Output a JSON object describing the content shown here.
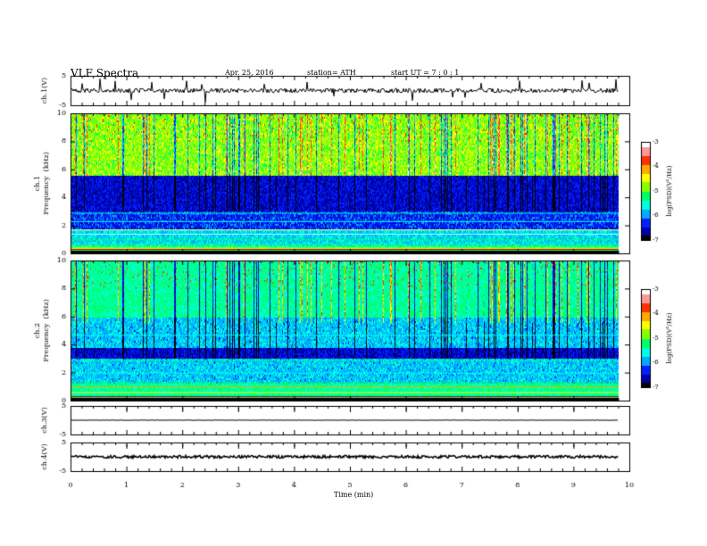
{
  "header": {
    "title": "VLF  Spectra",
    "date": "Apr. 25, 2016",
    "station": "station= ATH",
    "start": "start  UT  =    7  : 0  : 1"
  },
  "chart_data": [
    {
      "type": "line",
      "panel": "ch1-waveform",
      "ylabel": "ch.1(V)",
      "ylim": [
        -5,
        5
      ],
      "yticks": [
        "5",
        "-5"
      ],
      "color": "#000000"
    },
    {
      "type": "heatmap",
      "panel": "ch1-spectrogram",
      "ylabel": "ch.1\nFrequency  (kHz)",
      "ylim": [
        0,
        10
      ],
      "yticks": [
        "0",
        "2",
        "4",
        "6",
        "8",
        "10"
      ],
      "colorbar": {
        "label": "log(PSD)(V²/Hz)",
        "range": [
          -7,
          -3
        ],
        "ticks": [
          "-3",
          "-4",
          "-5",
          "-6",
          "-7"
        ]
      },
      "bands_khz": [
        {
          "from": 0.0,
          "to": 0.3,
          "level": "dark"
        },
        {
          "from": 0.3,
          "to": 1.8,
          "level": "cyan-green mix"
        },
        {
          "from": 1.8,
          "to": 3.0,
          "level": "blue with cyan lines"
        },
        {
          "from": 3.0,
          "to": 5.6,
          "level": "dark blue"
        },
        {
          "from": 5.6,
          "to": 10.0,
          "level": "green-yellow"
        }
      ]
    },
    {
      "type": "heatmap",
      "panel": "ch2-spectrogram",
      "ylabel": "ch.2\nFrequency  (kHz)",
      "ylim": [
        0,
        10
      ],
      "yticks": [
        "0",
        "2",
        "4",
        "6",
        "8",
        "10"
      ],
      "colorbar": {
        "label": "log(PSD)(V²/Hz)",
        "range": [
          -7,
          -3
        ],
        "ticks": [
          "-3",
          "-4",
          "-5",
          "-6",
          "-7"
        ]
      },
      "bands_khz": [
        {
          "from": 0.0,
          "to": 0.4,
          "level": "dark"
        },
        {
          "from": 0.4,
          "to": 3.0,
          "level": "cyan-green mix"
        },
        {
          "from": 3.0,
          "to": 3.8,
          "level": "dark blue"
        },
        {
          "from": 3.8,
          "to": 6.0,
          "level": "cyan-blue"
        },
        {
          "from": 6.0,
          "to": 10.0,
          "level": "green with dark streaks"
        }
      ]
    },
    {
      "type": "line",
      "panel": "ch3-waveform",
      "ylabel": "ch.3(V)",
      "ylim": [
        -5,
        5
      ],
      "yticks": [
        "5",
        "-5"
      ],
      "values_note": "flat near 0 V",
      "color": "#000000"
    },
    {
      "type": "line",
      "panel": "ch4-waveform",
      "ylabel": "ch.4(V)",
      "ylim": [
        -5,
        5
      ],
      "yticks": [
        "5",
        "-5"
      ],
      "values_note": "thick flat trace near 0 V",
      "color": "#000000"
    }
  ],
  "xaxis": {
    "label": "Time  (min)",
    "range": [
      0,
      10
    ],
    "data_end_min": 9.8,
    "ticks": [
      "0",
      "1",
      "2",
      "3",
      "4",
      "5",
      "6",
      "7",
      "8",
      "9",
      "10"
    ]
  },
  "colormap": [
    "#000000",
    "#0000aa",
    "#0022ff",
    "#00aaff",
    "#00ffdd",
    "#00ff66",
    "#88ff00",
    "#ffff00",
    "#ffaa00",
    "#ff3300",
    "#ff9999",
    "#ffffff"
  ]
}
